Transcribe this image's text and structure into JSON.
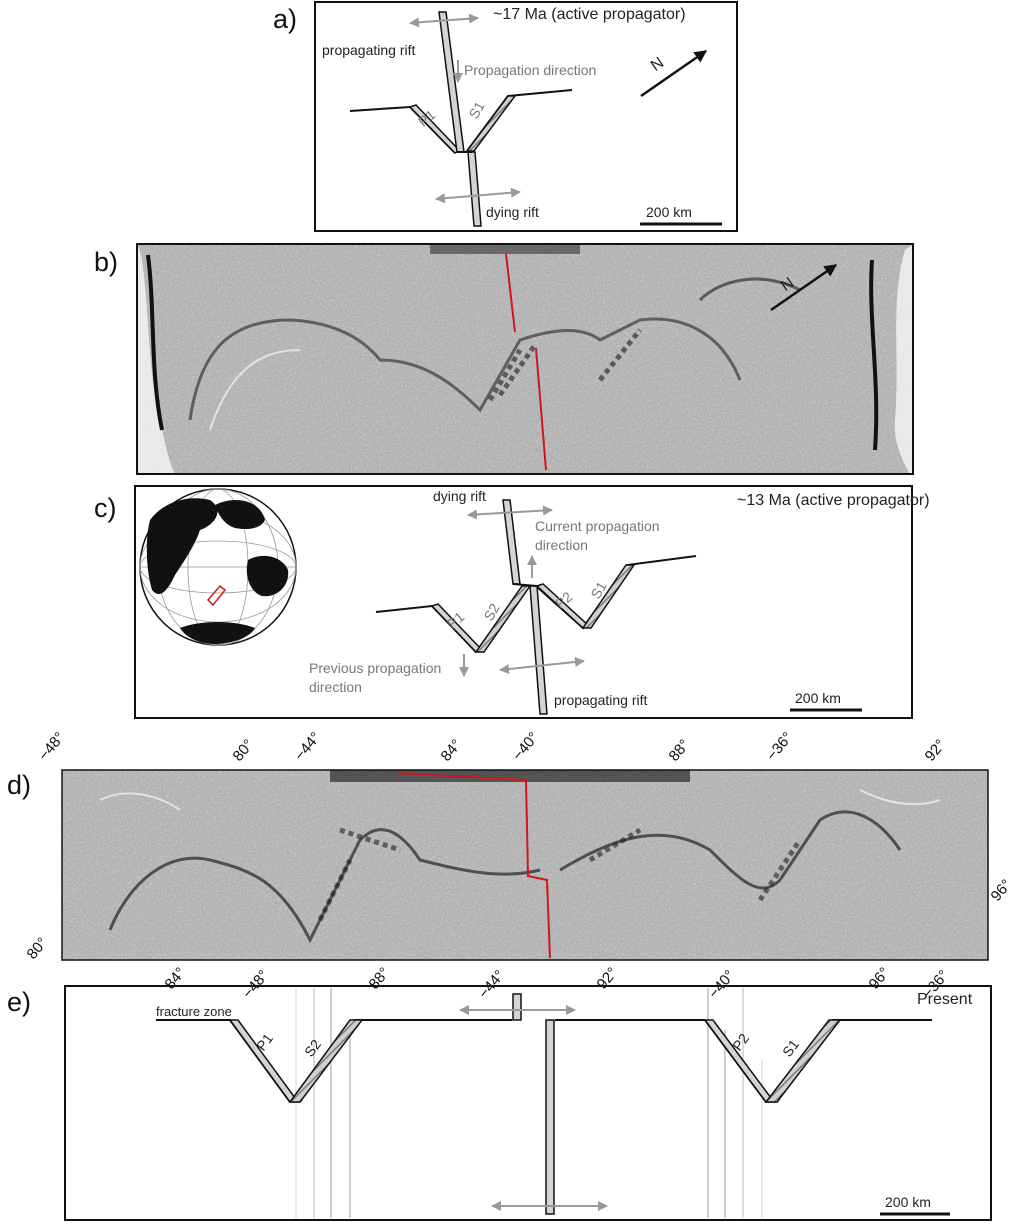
{
  "panel_a": {
    "label": "a)",
    "title": "~17 Ma (active propagator)",
    "propagating_rift": "propagating rift",
    "propagation_direction": "Propagation direction",
    "dying_rift": "dying rift",
    "p1": "P1",
    "s1": "S1",
    "north": "N",
    "scale": "200 km"
  },
  "panel_b": {
    "label": "b)",
    "north": "N"
  },
  "panel_c": {
    "label": "c)",
    "title": "~13 Ma (active propagator)",
    "dying_rift": "dying rift",
    "current_direction_line1": "Current propagation",
    "current_direction_line2": "direction",
    "previous_direction_line1": "Previous propagation",
    "previous_direction_line2": "direction",
    "propagating_rift": "propagating rift",
    "p1": "P1",
    "s2": "S2",
    "p2": "P2",
    "s1": "S1",
    "scale": "200 km"
  },
  "panel_d": {
    "label": "d)",
    "top_ticks": [
      "−48°",
      "80°",
      "−44°",
      "84°",
      "−40°",
      "88°",
      "−36°",
      "92°"
    ],
    "left_tick": "80°",
    "right_tick": "96°",
    "bottom_ticks": [
      "84°",
      "−48°",
      "88°",
      "−44°",
      "92°",
      "−40°",
      "96°",
      "−36°"
    ]
  },
  "panel_e": {
    "label": "e)",
    "title": "Present",
    "fracture_zone": "fracture zone",
    "p1": "P1",
    "s2": "S2",
    "p2": "P2",
    "s1": "S1",
    "scale": "200 km"
  },
  "colors": {
    "ink": "#111111",
    "label_grey": "#777777",
    "arrow_grey": "#999999",
    "rift_fill": "#d4d4d4",
    "hatch": "#8a8a8a",
    "red_line": "#d01818",
    "gravity_bg": "#a7a7a7"
  },
  "icons": [
    "north-arrow-icon",
    "globe-icon",
    "double-arrow-icon"
  ]
}
